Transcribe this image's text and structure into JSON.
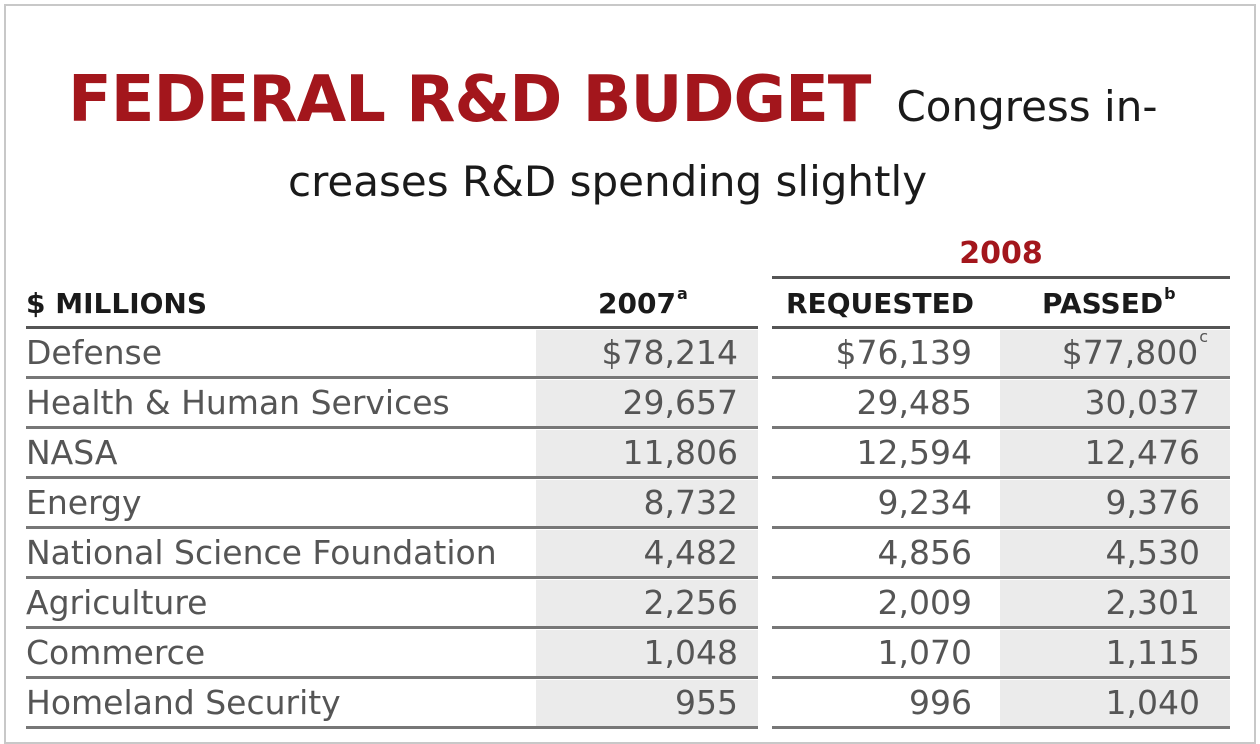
{
  "chart_data": {
    "type": "table",
    "title": "FEDERAL R&D BUDGET",
    "subtitle_line1": "Congress in-",
    "subtitle_line2": "creases R&D spending slightly",
    "group_header": "2008",
    "columns": [
      {
        "label": "$ MILLIONS",
        "note": ""
      },
      {
        "label": "2007",
        "note": "a"
      },
      {
        "label": "REQUESTED",
        "note": ""
      },
      {
        "label": "PASSED",
        "note": "b"
      }
    ],
    "rows": [
      {
        "label": "Defense",
        "y2007": "$78,214",
        "requested": "$76,139",
        "passed": "$77,800",
        "passed_note": "c"
      },
      {
        "label": "Health & Human Services",
        "y2007": "29,657",
        "requested": "29,485",
        "passed": "30,037",
        "passed_note": ""
      },
      {
        "label": "NASA",
        "y2007": "11,806",
        "requested": "12,594",
        "passed": "12,476",
        "passed_note": ""
      },
      {
        "label": "Energy",
        "y2007": "8,732",
        "requested": "9,234",
        "passed": "9,376",
        "passed_note": ""
      },
      {
        "label": "National Science Foundation",
        "y2007": "4,482",
        "requested": "4,856",
        "passed": "4,530",
        "passed_note": ""
      },
      {
        "label": "Agriculture",
        "y2007": "2,256",
        "requested": "2,009",
        "passed": "2,301",
        "passed_note": ""
      },
      {
        "label": "Commerce",
        "y2007": "1,048",
        "requested": "1,070",
        "passed": "1,115",
        "passed_note": ""
      },
      {
        "label": "Homeland Security",
        "y2007": "955",
        "requested": "996",
        "passed": "1,040",
        "passed_note": ""
      }
    ],
    "colors": {
      "headline": "#a3161c",
      "text": "#1a1a1a",
      "shade": "#ebebeb",
      "rule": "#555555"
    }
  }
}
